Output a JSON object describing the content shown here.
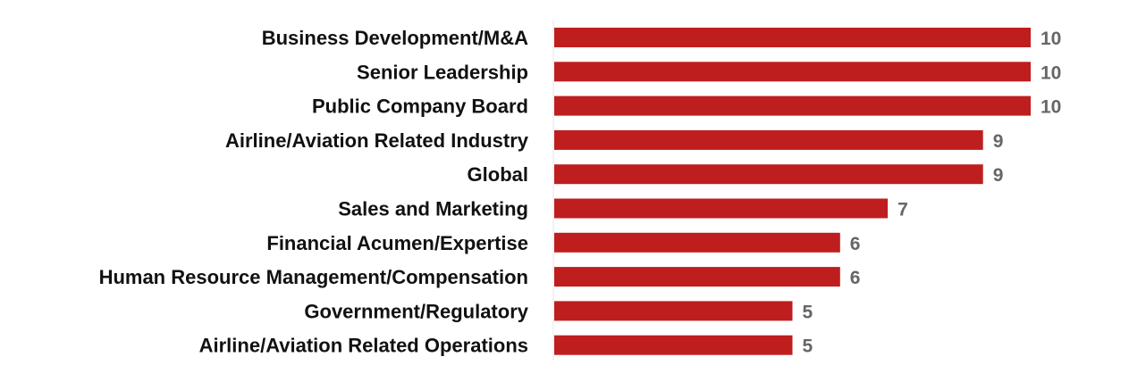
{
  "chart_data": {
    "type": "bar",
    "orientation": "horizontal",
    "categories": [
      "Business Development/M&A",
      "Senior Leadership",
      "Public Company Board",
      "Airline/Aviation Related Industry",
      "Global",
      "Sales and Marketing",
      "Financial Acumen/Expertise",
      "Human Resource Management/Compensation",
      "Government/Regulatory",
      "Airline/Aviation Related Operations"
    ],
    "values": [
      10,
      10,
      10,
      9,
      9,
      7,
      6,
      6,
      5,
      5
    ],
    "data_labels": true,
    "xlim": [
      0,
      10
    ],
    "grid": false,
    "title": "",
    "xlabel": "",
    "ylabel": "",
    "colors": {
      "bar": "#bf1e1e",
      "value_label": "#666666",
      "category_label": "#111111",
      "axis_line": "#e6e6e6"
    }
  }
}
